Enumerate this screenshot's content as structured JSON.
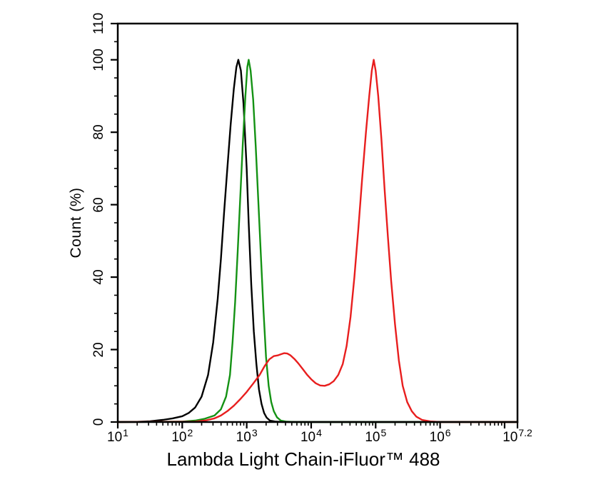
{
  "figure": {
    "background": "#ffffff",
    "frame_color": "#000000"
  },
  "chart_data": {
    "type": "line",
    "description": "Flow cytometry overlay histogram with three fluorescence intensity curves",
    "title": "",
    "xlabel": "Lambda Light Chain-iFluor™ 488",
    "ylabel": "Count  (%)",
    "x_axis": {
      "scale": "log10",
      "range_log10": [
        1,
        7.2
      ],
      "major_ticks_log10": [
        1,
        2,
        3,
        4,
        5,
        6,
        7,
        7.2
      ],
      "minor_ticks": "log decades 2-9 between majors",
      "tick_labels": [
        {
          "log10": 1,
          "base": "10",
          "exp": "1"
        },
        {
          "log10": 2,
          "base": "10",
          "exp": "2"
        },
        {
          "log10": 3,
          "base": "10",
          "exp": "3"
        },
        {
          "log10": 4,
          "base": "10",
          "exp": "4"
        },
        {
          "log10": 5,
          "base": "10",
          "exp": "5"
        },
        {
          "log10": 6,
          "base": "10",
          "exp": "6"
        },
        {
          "log10": 7.2,
          "base": "10",
          "exp": "7.2"
        }
      ]
    },
    "y_axis": {
      "range": [
        0,
        110
      ],
      "major_ticks": [
        0,
        20,
        40,
        60,
        80,
        100,
        110
      ],
      "minor_tick_step": 5,
      "grid": false
    },
    "legend": "none",
    "series": [
      {
        "name": "black-control-curve",
        "color": "#000000",
        "peak_log10_x": 2.87,
        "peak_percent": 100,
        "points": [
          [
            1.0,
            0
          ],
          [
            1.3,
            0.05
          ],
          [
            1.5,
            0.2
          ],
          [
            1.7,
            0.6
          ],
          [
            1.85,
            1
          ],
          [
            2.0,
            1.6
          ],
          [
            2.1,
            2.5
          ],
          [
            2.2,
            4
          ],
          [
            2.3,
            7
          ],
          [
            2.4,
            13
          ],
          [
            2.48,
            22
          ],
          [
            2.55,
            34
          ],
          [
            2.6,
            45
          ],
          [
            2.65,
            58
          ],
          [
            2.7,
            70
          ],
          [
            2.75,
            82
          ],
          [
            2.8,
            92
          ],
          [
            2.84,
            98
          ],
          [
            2.87,
            100
          ],
          [
            2.91,
            97
          ],
          [
            2.95,
            88
          ],
          [
            3.0,
            70
          ],
          [
            3.03,
            55
          ],
          [
            3.07,
            38
          ],
          [
            3.11,
            25
          ],
          [
            3.15,
            16
          ],
          [
            3.19,
            9
          ],
          [
            3.23,
            5
          ],
          [
            3.27,
            2.5
          ],
          [
            3.31,
            1.2
          ],
          [
            3.36,
            0.4
          ],
          [
            3.45,
            0.1
          ],
          [
            3.6,
            0
          ],
          [
            7.2,
            0
          ]
        ]
      },
      {
        "name": "green-control-curve",
        "color": "#149214",
        "peak_log10_x": 3.03,
        "peak_percent": 100,
        "points": [
          [
            1.0,
            0
          ],
          [
            2.0,
            0.1
          ],
          [
            2.2,
            0.4
          ],
          [
            2.35,
            0.9
          ],
          [
            2.5,
            1.8
          ],
          [
            2.6,
            3.5
          ],
          [
            2.68,
            7
          ],
          [
            2.74,
            13
          ],
          [
            2.78,
            22
          ],
          [
            2.82,
            33
          ],
          [
            2.86,
            47
          ],
          [
            2.9,
            62
          ],
          [
            2.94,
            77
          ],
          [
            2.98,
            90
          ],
          [
            3.01,
            98
          ],
          [
            3.03,
            100
          ],
          [
            3.06,
            97
          ],
          [
            3.1,
            89
          ],
          [
            3.14,
            76
          ],
          [
            3.18,
            61
          ],
          [
            3.22,
            46
          ],
          [
            3.26,
            31
          ],
          [
            3.3,
            18
          ],
          [
            3.34,
            10
          ],
          [
            3.38,
            5.5
          ],
          [
            3.42,
            3
          ],
          [
            3.47,
            1.3
          ],
          [
            3.53,
            0.4
          ],
          [
            3.62,
            0.1
          ],
          [
            3.75,
            0
          ],
          [
            7.2,
            0
          ]
        ]
      },
      {
        "name": "red-stained-curve",
        "color": "#e81e1e",
        "peak_log10_x": 4.97,
        "peak_percent": 100,
        "secondary_hump": {
          "log10_x": 3.58,
          "percent": 19
        },
        "valley": {
          "log10_x": 4.21,
          "percent": 10
        },
        "points": [
          [
            1.0,
            0
          ],
          [
            2.2,
            0.1
          ],
          [
            2.35,
            0.4
          ],
          [
            2.5,
            1
          ],
          [
            2.6,
            1.8
          ],
          [
            2.7,
            3
          ],
          [
            2.8,
            4.5
          ],
          [
            2.9,
            6.3
          ],
          [
            3.0,
            8.3
          ],
          [
            3.1,
            10.6
          ],
          [
            3.2,
            13
          ],
          [
            3.28,
            15.5
          ],
          [
            3.35,
            17.3
          ],
          [
            3.42,
            18.2
          ],
          [
            3.48,
            18.4
          ],
          [
            3.53,
            18.7
          ],
          [
            3.58,
            19
          ],
          [
            3.63,
            18.9
          ],
          [
            3.68,
            18.4
          ],
          [
            3.74,
            17.4
          ],
          [
            3.8,
            16.2
          ],
          [
            3.87,
            14.6
          ],
          [
            3.94,
            13
          ],
          [
            4.0,
            11.8
          ],
          [
            4.07,
            10.7
          ],
          [
            4.14,
            10.1
          ],
          [
            4.21,
            10
          ],
          [
            4.28,
            10.4
          ],
          [
            4.35,
            11.3
          ],
          [
            4.42,
            13
          ],
          [
            4.49,
            16
          ],
          [
            4.55,
            21
          ],
          [
            4.61,
            29
          ],
          [
            4.67,
            40
          ],
          [
            4.73,
            53
          ],
          [
            4.79,
            67
          ],
          [
            4.85,
            80
          ],
          [
            4.9,
            90
          ],
          [
            4.94,
            97
          ],
          [
            4.97,
            100
          ],
          [
            5.0,
            97
          ],
          [
            5.04,
            90
          ],
          [
            5.09,
            78
          ],
          [
            5.14,
            64
          ],
          [
            5.19,
            51
          ],
          [
            5.24,
            39
          ],
          [
            5.3,
            27
          ],
          [
            5.36,
            17
          ],
          [
            5.42,
            10
          ],
          [
            5.49,
            5.5
          ],
          [
            5.56,
            3
          ],
          [
            5.63,
            1.5
          ],
          [
            5.72,
            0.6
          ],
          [
            5.85,
            0.15
          ],
          [
            6.0,
            0
          ],
          [
            7.2,
            0
          ]
        ]
      }
    ]
  }
}
